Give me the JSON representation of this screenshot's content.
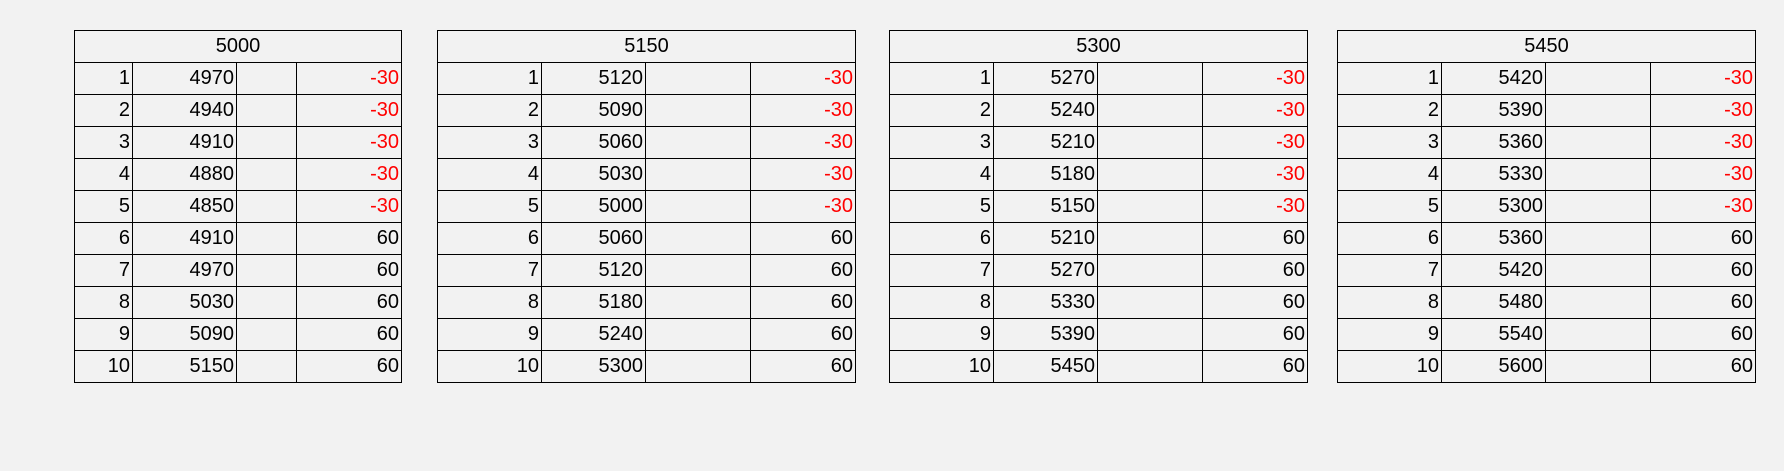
{
  "tables": [
    {
      "header": "5000",
      "rows": [
        {
          "idx": "1",
          "value": "4970",
          "blank": "",
          "delta": "-30"
        },
        {
          "idx": "2",
          "value": "4940",
          "blank": "",
          "delta": "-30"
        },
        {
          "idx": "3",
          "value": "4910",
          "blank": "",
          "delta": "-30"
        },
        {
          "idx": "4",
          "value": "4880",
          "blank": "",
          "delta": "-30"
        },
        {
          "idx": "5",
          "value": "4850",
          "blank": "",
          "delta": "-30"
        },
        {
          "idx": "6",
          "value": "4910",
          "blank": "",
          "delta": "60"
        },
        {
          "idx": "7",
          "value": "4970",
          "blank": "",
          "delta": "60"
        },
        {
          "idx": "8",
          "value": "5030",
          "blank": "",
          "delta": "60"
        },
        {
          "idx": "9",
          "value": "5090",
          "blank": "",
          "delta": "60"
        },
        {
          "idx": "10",
          "value": "5150",
          "blank": "",
          "delta": "60"
        }
      ]
    },
    {
      "header": "5150",
      "rows": [
        {
          "idx": "1",
          "value": "5120",
          "blank": "",
          "delta": "-30"
        },
        {
          "idx": "2",
          "value": "5090",
          "blank": "",
          "delta": "-30"
        },
        {
          "idx": "3",
          "value": "5060",
          "blank": "",
          "delta": "-30"
        },
        {
          "idx": "4",
          "value": "5030",
          "blank": "",
          "delta": "-30"
        },
        {
          "idx": "5",
          "value": "5000",
          "blank": "",
          "delta": "-30"
        },
        {
          "idx": "6",
          "value": "5060",
          "blank": "",
          "delta": "60"
        },
        {
          "idx": "7",
          "value": "5120",
          "blank": "",
          "delta": "60"
        },
        {
          "idx": "8",
          "value": "5180",
          "blank": "",
          "delta": "60"
        },
        {
          "idx": "9",
          "value": "5240",
          "blank": "",
          "delta": "60"
        },
        {
          "idx": "10",
          "value": "5300",
          "blank": "",
          "delta": "60"
        }
      ]
    },
    {
      "header": "5300",
      "rows": [
        {
          "idx": "1",
          "value": "5270",
          "blank": "",
          "delta": "-30"
        },
        {
          "idx": "2",
          "value": "5240",
          "blank": "",
          "delta": "-30"
        },
        {
          "idx": "3",
          "value": "5210",
          "blank": "",
          "delta": "-30"
        },
        {
          "idx": "4",
          "value": "5180",
          "blank": "",
          "delta": "-30"
        },
        {
          "idx": "5",
          "value": "5150",
          "blank": "",
          "delta": "-30"
        },
        {
          "idx": "6",
          "value": "5210",
          "blank": "",
          "delta": "60"
        },
        {
          "idx": "7",
          "value": "5270",
          "blank": "",
          "delta": "60"
        },
        {
          "idx": "8",
          "value": "5330",
          "blank": "",
          "delta": "60"
        },
        {
          "idx": "9",
          "value": "5390",
          "blank": "",
          "delta": "60"
        },
        {
          "idx": "10",
          "value": "5450",
          "blank": "",
          "delta": "60"
        }
      ]
    },
    {
      "header": "5450",
      "rows": [
        {
          "idx": "1",
          "value": "5420",
          "blank": "",
          "delta": "-30"
        },
        {
          "idx": "2",
          "value": "5390",
          "blank": "",
          "delta": "-30"
        },
        {
          "idx": "3",
          "value": "5360",
          "blank": "",
          "delta": "-30"
        },
        {
          "idx": "4",
          "value": "5330",
          "blank": "",
          "delta": "-30"
        },
        {
          "idx": "5",
          "value": "5300",
          "blank": "",
          "delta": "-30"
        },
        {
          "idx": "6",
          "value": "5360",
          "blank": "",
          "delta": "60"
        },
        {
          "idx": "7",
          "value": "5420",
          "blank": "",
          "delta": "60"
        },
        {
          "idx": "8",
          "value": "5480",
          "blank": "",
          "delta": "60"
        },
        {
          "idx": "9",
          "value": "5540",
          "blank": "",
          "delta": "60"
        },
        {
          "idx": "10",
          "value": "5600",
          "blank": "",
          "delta": "60"
        }
      ]
    }
  ],
  "colors": {
    "background": "#f2f2f2",
    "negative": "#ff0000",
    "text": "#000000"
  }
}
